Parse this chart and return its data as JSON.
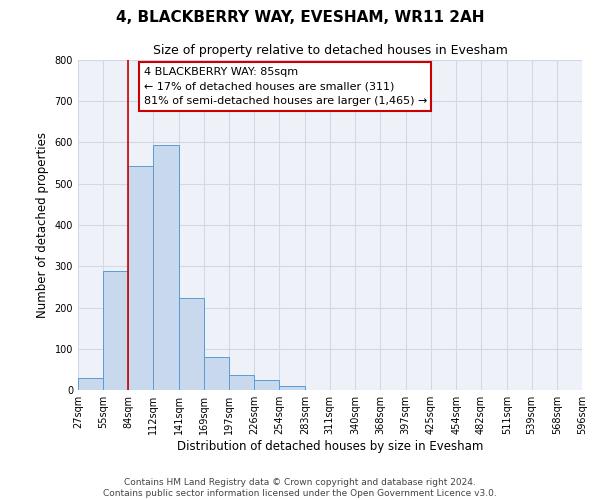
{
  "title": "4, BLACKBERRY WAY, EVESHAM, WR11 2AH",
  "subtitle": "Size of property relative to detached houses in Evesham",
  "xlabel": "Distribution of detached houses by size in Evesham",
  "ylabel": "Number of detached properties",
  "bin_edges": [
    27,
    55,
    84,
    112,
    141,
    169,
    197,
    226,
    254,
    283,
    311,
    340,
    368,
    397,
    425,
    454,
    482,
    511,
    539,
    568,
    596
  ],
  "bin_labels": [
    "27sqm",
    "55sqm",
    "84sqm",
    "112sqm",
    "141sqm",
    "169sqm",
    "197sqm",
    "226sqm",
    "254sqm",
    "283sqm",
    "311sqm",
    "340sqm",
    "368sqm",
    "397sqm",
    "425sqm",
    "454sqm",
    "482sqm",
    "511sqm",
    "539sqm",
    "568sqm",
    "596sqm"
  ],
  "counts": [
    28,
    289,
    544,
    595,
    222,
    80,
    37,
    25,
    10,
    0,
    0,
    0,
    0,
    0,
    0,
    0,
    0,
    0,
    0,
    0
  ],
  "bar_color": "#c8d9ed",
  "bar_edge_color": "#5b9bd5",
  "grid_color": "#d0d8e8",
  "property_line_x": 84,
  "property_line_color": "#cc0000",
  "annotation_title": "4 BLACKBERRY WAY: 85sqm",
  "annotation_line1": "← 17% of detached houses are smaller (311)",
  "annotation_line2": "81% of semi-detached houses are larger (1,465) →",
  "annotation_box_color": "#ffffff",
  "annotation_box_edge_color": "#cc0000",
  "ylim": [
    0,
    800
  ],
  "yticks": [
    0,
    100,
    200,
    300,
    400,
    500,
    600,
    700,
    800
  ],
  "footer_line1": "Contains HM Land Registry data © Crown copyright and database right 2024.",
  "footer_line2": "Contains public sector information licensed under the Open Government Licence v3.0.",
  "title_fontsize": 11,
  "subtitle_fontsize": 9,
  "axis_label_fontsize": 8.5,
  "tick_fontsize": 7,
  "annotation_fontsize": 8,
  "footer_fontsize": 6.5
}
